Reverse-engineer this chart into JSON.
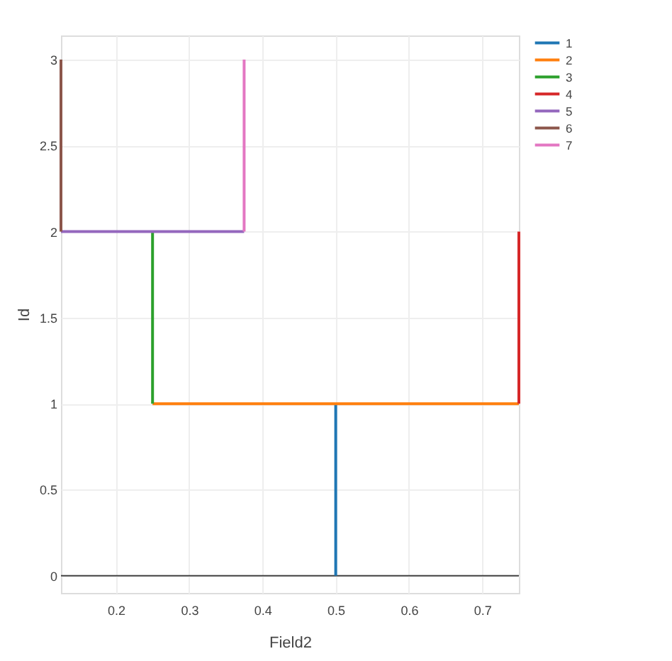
{
  "chart_data": {
    "type": "line",
    "xlabel": "Field2",
    "ylabel": "Id",
    "xlim": [
      0.125,
      0.75
    ],
    "ylim": [
      -0.1,
      3.14
    ],
    "xticks": [
      0.2,
      0.3,
      0.4,
      0.5,
      0.6,
      0.7
    ],
    "yticks": [
      0,
      0.5,
      1,
      1.5,
      2,
      2.5,
      3
    ],
    "grid": true,
    "legend": "top right",
    "line_style": "solid",
    "series": [
      {
        "name": "1",
        "color": "#1f77b4",
        "x": [
          0.5,
          0.5
        ],
        "values": [
          0,
          1
        ]
      },
      {
        "name": "2",
        "color": "#ff7f0e",
        "x": [
          0.25,
          0.75
        ],
        "values": [
          1,
          1
        ]
      },
      {
        "name": "3",
        "color": "#2ca02c",
        "x": [
          0.25,
          0.25
        ],
        "values": [
          1,
          2
        ]
      },
      {
        "name": "4",
        "color": "#d62728",
        "x": [
          0.75,
          0.75
        ],
        "values": [
          1,
          2
        ]
      },
      {
        "name": "5",
        "color": "#9467bd",
        "x": [
          0.125,
          0.375
        ],
        "values": [
          2,
          2
        ]
      },
      {
        "name": "6",
        "color": "#8c564b",
        "x": [
          0.125,
          0.125
        ],
        "values": [
          2,
          3
        ]
      },
      {
        "name": "7",
        "color": "#e377c2",
        "x": [
          0.375,
          0.375
        ],
        "values": [
          2,
          3
        ]
      }
    ],
    "ref_lines": [
      {
        "axis": "y",
        "value": 0,
        "color": "#444444"
      }
    ]
  }
}
